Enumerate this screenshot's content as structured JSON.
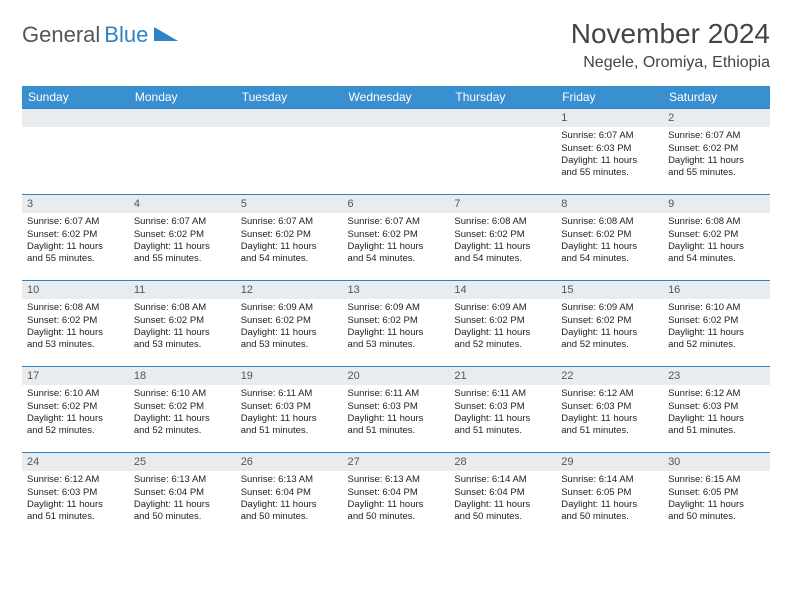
{
  "brand": {
    "name1": "General",
    "name2": "Blue"
  },
  "title": "November 2024",
  "location": "Negele, Oromiya, Ethiopia",
  "colors": {
    "header_bg": "#3a8fd0",
    "border": "#2d83c5",
    "daynum_bg": "#e9ecef",
    "text": "#222222"
  },
  "weekdays": [
    "Sunday",
    "Monday",
    "Tuesday",
    "Wednesday",
    "Thursday",
    "Friday",
    "Saturday"
  ],
  "weeks": [
    [
      null,
      null,
      null,
      null,
      null,
      {
        "n": "1",
        "sr": "Sunrise: 6:07 AM",
        "ss": "Sunset: 6:03 PM",
        "d1": "Daylight: 11 hours",
        "d2": "and 55 minutes."
      },
      {
        "n": "2",
        "sr": "Sunrise: 6:07 AM",
        "ss": "Sunset: 6:02 PM",
        "d1": "Daylight: 11 hours",
        "d2": "and 55 minutes."
      }
    ],
    [
      {
        "n": "3",
        "sr": "Sunrise: 6:07 AM",
        "ss": "Sunset: 6:02 PM",
        "d1": "Daylight: 11 hours",
        "d2": "and 55 minutes."
      },
      {
        "n": "4",
        "sr": "Sunrise: 6:07 AM",
        "ss": "Sunset: 6:02 PM",
        "d1": "Daylight: 11 hours",
        "d2": "and 55 minutes."
      },
      {
        "n": "5",
        "sr": "Sunrise: 6:07 AM",
        "ss": "Sunset: 6:02 PM",
        "d1": "Daylight: 11 hours",
        "d2": "and 54 minutes."
      },
      {
        "n": "6",
        "sr": "Sunrise: 6:07 AM",
        "ss": "Sunset: 6:02 PM",
        "d1": "Daylight: 11 hours",
        "d2": "and 54 minutes."
      },
      {
        "n": "7",
        "sr": "Sunrise: 6:08 AM",
        "ss": "Sunset: 6:02 PM",
        "d1": "Daylight: 11 hours",
        "d2": "and 54 minutes."
      },
      {
        "n": "8",
        "sr": "Sunrise: 6:08 AM",
        "ss": "Sunset: 6:02 PM",
        "d1": "Daylight: 11 hours",
        "d2": "and 54 minutes."
      },
      {
        "n": "9",
        "sr": "Sunrise: 6:08 AM",
        "ss": "Sunset: 6:02 PM",
        "d1": "Daylight: 11 hours",
        "d2": "and 54 minutes."
      }
    ],
    [
      {
        "n": "10",
        "sr": "Sunrise: 6:08 AM",
        "ss": "Sunset: 6:02 PM",
        "d1": "Daylight: 11 hours",
        "d2": "and 53 minutes."
      },
      {
        "n": "11",
        "sr": "Sunrise: 6:08 AM",
        "ss": "Sunset: 6:02 PM",
        "d1": "Daylight: 11 hours",
        "d2": "and 53 minutes."
      },
      {
        "n": "12",
        "sr": "Sunrise: 6:09 AM",
        "ss": "Sunset: 6:02 PM",
        "d1": "Daylight: 11 hours",
        "d2": "and 53 minutes."
      },
      {
        "n": "13",
        "sr": "Sunrise: 6:09 AM",
        "ss": "Sunset: 6:02 PM",
        "d1": "Daylight: 11 hours",
        "d2": "and 53 minutes."
      },
      {
        "n": "14",
        "sr": "Sunrise: 6:09 AM",
        "ss": "Sunset: 6:02 PM",
        "d1": "Daylight: 11 hours",
        "d2": "and 52 minutes."
      },
      {
        "n": "15",
        "sr": "Sunrise: 6:09 AM",
        "ss": "Sunset: 6:02 PM",
        "d1": "Daylight: 11 hours",
        "d2": "and 52 minutes."
      },
      {
        "n": "16",
        "sr": "Sunrise: 6:10 AM",
        "ss": "Sunset: 6:02 PM",
        "d1": "Daylight: 11 hours",
        "d2": "and 52 minutes."
      }
    ],
    [
      {
        "n": "17",
        "sr": "Sunrise: 6:10 AM",
        "ss": "Sunset: 6:02 PM",
        "d1": "Daylight: 11 hours",
        "d2": "and 52 minutes."
      },
      {
        "n": "18",
        "sr": "Sunrise: 6:10 AM",
        "ss": "Sunset: 6:02 PM",
        "d1": "Daylight: 11 hours",
        "d2": "and 52 minutes."
      },
      {
        "n": "19",
        "sr": "Sunrise: 6:11 AM",
        "ss": "Sunset: 6:03 PM",
        "d1": "Daylight: 11 hours",
        "d2": "and 51 minutes."
      },
      {
        "n": "20",
        "sr": "Sunrise: 6:11 AM",
        "ss": "Sunset: 6:03 PM",
        "d1": "Daylight: 11 hours",
        "d2": "and 51 minutes."
      },
      {
        "n": "21",
        "sr": "Sunrise: 6:11 AM",
        "ss": "Sunset: 6:03 PM",
        "d1": "Daylight: 11 hours",
        "d2": "and 51 minutes."
      },
      {
        "n": "22",
        "sr": "Sunrise: 6:12 AM",
        "ss": "Sunset: 6:03 PM",
        "d1": "Daylight: 11 hours",
        "d2": "and 51 minutes."
      },
      {
        "n": "23",
        "sr": "Sunrise: 6:12 AM",
        "ss": "Sunset: 6:03 PM",
        "d1": "Daylight: 11 hours",
        "d2": "and 51 minutes."
      }
    ],
    [
      {
        "n": "24",
        "sr": "Sunrise: 6:12 AM",
        "ss": "Sunset: 6:03 PM",
        "d1": "Daylight: 11 hours",
        "d2": "and 51 minutes."
      },
      {
        "n": "25",
        "sr": "Sunrise: 6:13 AM",
        "ss": "Sunset: 6:04 PM",
        "d1": "Daylight: 11 hours",
        "d2": "and 50 minutes."
      },
      {
        "n": "26",
        "sr": "Sunrise: 6:13 AM",
        "ss": "Sunset: 6:04 PM",
        "d1": "Daylight: 11 hours",
        "d2": "and 50 minutes."
      },
      {
        "n": "27",
        "sr": "Sunrise: 6:13 AM",
        "ss": "Sunset: 6:04 PM",
        "d1": "Daylight: 11 hours",
        "d2": "and 50 minutes."
      },
      {
        "n": "28",
        "sr": "Sunrise: 6:14 AM",
        "ss": "Sunset: 6:04 PM",
        "d1": "Daylight: 11 hours",
        "d2": "and 50 minutes."
      },
      {
        "n": "29",
        "sr": "Sunrise: 6:14 AM",
        "ss": "Sunset: 6:05 PM",
        "d1": "Daylight: 11 hours",
        "d2": "and 50 minutes."
      },
      {
        "n": "30",
        "sr": "Sunrise: 6:15 AM",
        "ss": "Sunset: 6:05 PM",
        "d1": "Daylight: 11 hours",
        "d2": "and 50 minutes."
      }
    ]
  ]
}
